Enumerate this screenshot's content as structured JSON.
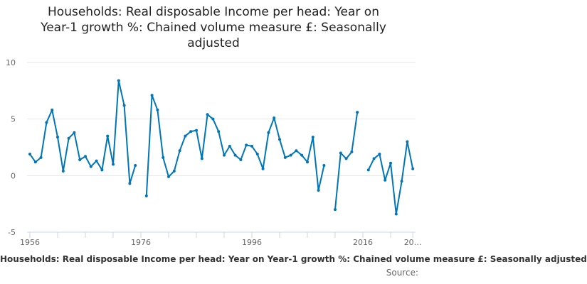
{
  "chart_data": {
    "type": "line",
    "title": "Households: Real disposable Income per head: Year on Year-1 growth %: Chained volume measure £: Seasonally adjusted",
    "title_lines": [
      "Households: Real disposable Income per head: Year on",
      "Year-1 growth %: Chained volume measure £: Seasonally",
      "adjusted"
    ],
    "xlabel": "Households: Real disposable Income per head: Year on Year-1 growth %: Chained volume measure £: Seasonally adjusted",
    "ylabel": "",
    "source_label": "Source:",
    "ylim": [
      -5,
      10
    ],
    "yticks": [
      -5,
      0,
      5,
      10
    ],
    "xtick_labels": [
      "1956",
      "1976",
      "1996",
      "2016",
      "20…"
    ],
    "grid": true,
    "legend": null,
    "line_color": "#0075b7",
    "x": [
      1956,
      1957,
      1958,
      1959,
      1960,
      1961,
      1962,
      1963,
      1964,
      1965,
      1966,
      1967,
      1968,
      1969,
      1970,
      1971,
      1972,
      1973,
      1974,
      1975,
      1976,
      1977,
      1978,
      1979,
      1980,
      1981,
      1982,
      1983,
      1984,
      1985,
      1986,
      1987,
      1988,
      1989,
      1990,
      1991,
      1992,
      1993,
      1994,
      1995,
      1996,
      1997,
      1998,
      1999,
      2000,
      2001,
      2002,
      2003,
      2004,
      2005,
      2006,
      2007,
      2008,
      2009,
      2010,
      2011,
      2012,
      2013,
      2014,
      2015,
      2016,
      2017,
      2018,
      2019,
      2020,
      2021,
      2022,
      2023,
      2024,
      2025
    ],
    "series": [
      {
        "name": "Households: Real disposable Income per head: Year on Year-1 growth %",
        "values": [
          1.9,
          1.2,
          1.6,
          4.7,
          5.8,
          3.4,
          0.4,
          3.3,
          3.8,
          1.4,
          1.7,
          0.8,
          1.3,
          0.5,
          3.5,
          1.0,
          8.4,
          6.2,
          -0.7,
          0.9,
          null,
          -1.8,
          7.1,
          5.8,
          1.6,
          -0.1,
          0.4,
          2.2,
          3.5,
          3.9,
          4.0,
          1.5,
          5.4,
          5.0,
          3.9,
          1.8,
          2.6,
          1.8,
          1.4,
          2.7,
          2.6,
          1.9,
          0.6,
          3.8,
          5.1,
          3.2,
          1.6,
          1.8,
          2.2,
          1.8,
          1.2,
          3.4,
          -1.3,
          0.9,
          null,
          -3.0,
          2.0,
          1.5,
          2.1,
          5.6,
          null,
          0.5,
          1.5,
          1.9,
          -0.4,
          1.1,
          -3.4,
          -0.5,
          3.0,
          0.6
        ]
      }
    ]
  }
}
